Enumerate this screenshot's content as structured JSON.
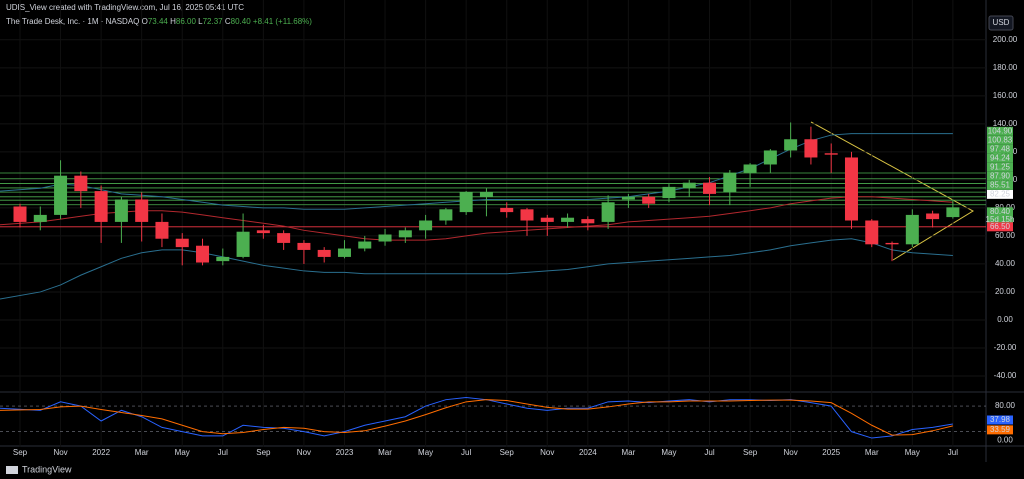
{
  "chart_data": {
    "type": "candlestick",
    "header": "UDIS_View created with TradingView.com, Jul 16, 2025 05:41 UTC",
    "legend": {
      "name": "The Trade Desk, Inc. · 1M · NASDAQ",
      "items": [
        {
          "key": "O",
          "value": "73.44"
        },
        {
          "key": "H",
          "value": "86.00"
        },
        {
          "key": "L",
          "value": "72.37"
        },
        {
          "key": "C",
          "value": "80.40"
        }
      ],
      "change": "+8.41 (+11.68%)"
    },
    "currency": "USD",
    "brand": "TradingView",
    "categories": [
      "Sep",
      null,
      "Nov",
      null,
      "2022",
      null,
      "Mar",
      null,
      "May",
      null,
      "Jul",
      null,
      "Sep",
      null,
      "Nov",
      null,
      "2023",
      null,
      "Mar",
      null,
      "May",
      null,
      "Jul",
      null,
      "Sep",
      null,
      "Nov",
      null,
      "2024",
      null,
      "Mar",
      null,
      "May",
      null,
      "Jul",
      null,
      "Sep",
      null,
      "Nov",
      null,
      "2025",
      null,
      "Mar",
      null,
      "May",
      null,
      "Jul"
    ],
    "open": [
      81,
      70,
      75,
      103,
      92,
      70,
      86,
      70,
      58,
      53,
      42,
      45,
      64,
      62,
      55,
      50,
      45,
      51,
      56,
      59,
      64,
      71,
      77,
      88,
      80,
      79,
      73,
      70,
      72,
      70,
      86,
      88,
      87,
      94,
      98,
      91,
      105,
      111,
      121,
      129,
      119,
      116,
      71,
      55,
      54,
      76,
      73.44
    ],
    "high": [
      83,
      81,
      114,
      106,
      96,
      88,
      91,
      76,
      62,
      58,
      51,
      76,
      68,
      64,
      57,
      52,
      57,
      60,
      65,
      66,
      75,
      80,
      92,
      94,
      84,
      80,
      75,
      76,
      74,
      89,
      90,
      90,
      97,
      100,
      102,
      107,
      112,
      122,
      141,
      138,
      126,
      120,
      72,
      56,
      79,
      78,
      86
    ],
    "low": [
      66,
      64,
      72,
      80,
      55,
      55,
      56,
      52,
      39,
      39,
      39,
      44,
      58,
      50,
      40,
      41,
      44,
      49,
      53,
      55,
      58,
      68,
      75,
      74,
      73,
      60,
      60,
      66,
      64,
      65,
      80,
      80,
      84,
      88,
      82,
      82,
      95,
      105,
      116,
      111,
      105,
      65,
      52,
      42,
      52,
      66,
      72.37
    ],
    "close": [
      70,
      75,
      103,
      92,
      70,
      86,
      70,
      58,
      52,
      41,
      45,
      63,
      62,
      55,
      50,
      45,
      51,
      56,
      61,
      64,
      71,
      79,
      91,
      91,
      77,
      71,
      70,
      73,
      69,
      84,
      88,
      83,
      95,
      98,
      90,
      105,
      111,
      121,
      129,
      116,
      118,
      71,
      54,
      54,
      75,
      72,
      80.4
    ],
    "up_color": "#4caf50",
    "down_color": "#f23645",
    "lines": [
      {
        "color": "#b2282e",
        "values": [
          68,
          70,
          72,
          74,
          76,
          77,
          78,
          78,
          77,
          75,
          73,
          71,
          69,
          67,
          64,
          62,
          60,
          58,
          57,
          57,
          57,
          58,
          60,
          62,
          63,
          64,
          65,
          66,
          67,
          68,
          70,
          71,
          72,
          73,
          74,
          76,
          78,
          80,
          83,
          85,
          87,
          88,
          88,
          87,
          86,
          85,
          84
        ]
      },
      {
        "color": "#2a6f8f",
        "values": [
          92,
          94,
          97,
          96,
          93,
          90,
          89,
          88,
          86,
          84,
          82,
          81,
          80,
          80,
          79,
          79,
          79,
          80,
          81,
          82,
          83,
          84,
          85,
          86,
          86,
          86,
          86,
          86,
          86,
          87,
          88,
          90,
          92,
          95,
          98,
          103,
          108,
          115,
          122,
          128,
          132,
          133,
          133,
          133,
          133,
          133,
          133
        ]
      },
      {
        "color": "#2a6f8f",
        "values": [
          15,
          20,
          25,
          32,
          38,
          44,
          48,
          50,
          50,
          48,
          45,
          42,
          39,
          37,
          35,
          34,
          34,
          33,
          33,
          33,
          33,
          33,
          33,
          33,
          33,
          34,
          35,
          36,
          38,
          40,
          41,
          42,
          43,
          44,
          45,
          46,
          48,
          50,
          53,
          55,
          57,
          58,
          55,
          50,
          48,
          47,
          46
        ]
      }
    ],
    "levels": [
      {
        "value": 104.9,
        "label": "104.90"
      },
      {
        "value": 100.83,
        "label": "100.83"
      },
      {
        "value": 97.48,
        "label": "97.48"
      },
      {
        "value": 94.24,
        "label": "94.24"
      },
      {
        "value": 91.25,
        "label": "91.25"
      },
      {
        "value": 87.9,
        "label": "87.90"
      },
      {
        "value": 85.51,
        "label": "85.51"
      },
      {
        "value": 82.25,
        "label": "82.25"
      }
    ],
    "level_color": "#4caf50",
    "last_price_label": "80.40",
    "countdown": "15d 15h",
    "support": {
      "value": 66.5,
      "label": "66.50",
      "color": "#f23645"
    },
    "ylim": [
      -50,
      207
    ],
    "yticks": [
      {
        "value": 200,
        "label": "200.00"
      },
      {
        "value": 180,
        "label": "180.00"
      },
      {
        "value": 160,
        "label": "160.00"
      },
      {
        "value": 140,
        "label": "140.00"
      },
      {
        "value": 120,
        "label": "120.00"
      },
      {
        "value": 100,
        "label": "100.00"
      },
      {
        "value": 80,
        "label": "80.00"
      },
      {
        "value": 60,
        "label": "60.00"
      },
      {
        "value": 40,
        "label": "40.00"
      },
      {
        "value": 20,
        "label": "20.00"
      },
      {
        "value": 0,
        "label": "0.00"
      },
      {
        "value": -20,
        "label": "-20.00"
      },
      {
        "value": -40,
        "label": "-40.00"
      }
    ],
    "oscillator": {
      "y2lim": [
        -16,
        106
      ],
      "y2ticks": [
        {
          "value": 80,
          "label": "80.00"
        },
        {
          "value": 0,
          "label": "0.00"
        }
      ],
      "bands": [
        80,
        20
      ],
      "series": [
        {
          "color": "#2962ff",
          "values": [
            75,
            70,
            90,
            80,
            45,
            70,
            55,
            30,
            20,
            10,
            10,
            35,
            30,
            28,
            20,
            10,
            20,
            35,
            45,
            55,
            80,
            95,
            100,
            95,
            85,
            75,
            70,
            75,
            75,
            90,
            92,
            88,
            92,
            95,
            90,
            95,
            95,
            93,
            95,
            88,
            80,
            20,
            5,
            10,
            25,
            30,
            37.98
          ],
          "value_label": "37.98"
        },
        {
          "color": "#ff6d00",
          "values": [
            70,
            72,
            78,
            80,
            72,
            65,
            58,
            50,
            35,
            20,
            15,
            18,
            25,
            30,
            28,
            20,
            18,
            22,
            33,
            45,
            60,
            76,
            90,
            95,
            93,
            85,
            77,
            73,
            73,
            78,
            85,
            90,
            90,
            92,
            92,
            92,
            93,
            94,
            94,
            92,
            88,
            63,
            35,
            12,
            13,
            22,
            33.59
          ],
          "value_label": "33.59"
        }
      ]
    }
  }
}
